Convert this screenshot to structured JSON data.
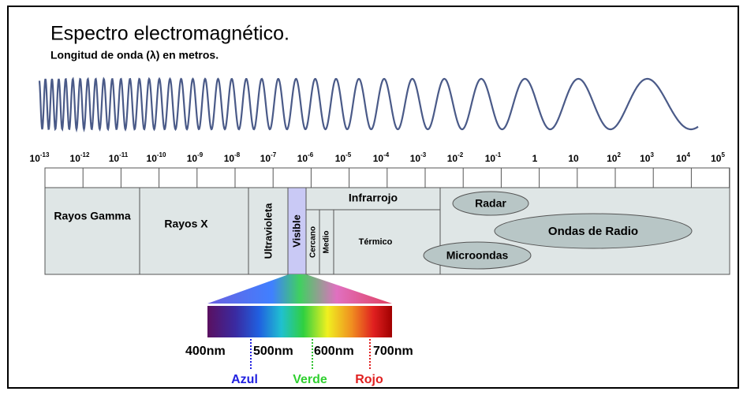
{
  "title": "Espectro electromagnético.",
  "subtitle": "Longitud de onda (λ) en metros.",
  "scale": {
    "ticks": [
      {
        "base": "10",
        "exp": "-13"
      },
      {
        "base": "10",
        "exp": "-12"
      },
      {
        "base": "10",
        "exp": "-11"
      },
      {
        "base": "10",
        "exp": "-10"
      },
      {
        "base": "10",
        "exp": "-9"
      },
      {
        "base": "10",
        "exp": "-8"
      },
      {
        "base": "10",
        "exp": "-7"
      },
      {
        "base": "10",
        "exp": "-6"
      },
      {
        "base": "10",
        "exp": "-5"
      },
      {
        "base": "10",
        "exp": "-4"
      },
      {
        "base": "10",
        "exp": "-3"
      },
      {
        "base": "10",
        "exp": "-2"
      },
      {
        "base": "10",
        "exp": "-1"
      },
      {
        "base": "1"
      },
      {
        "base": "10"
      },
      {
        "base": "10",
        "exp": "2"
      },
      {
        "base": "10",
        "exp": "3"
      },
      {
        "base": "10",
        "exp": "4"
      },
      {
        "base": "10",
        "exp": "5"
      }
    ]
  },
  "bands": {
    "gamma": "Rayos Gamma",
    "xray": "Rayos X",
    "uv": "Ultravioleta",
    "visible": "Visible",
    "infrared": "Infrarrojo",
    "near": "Cercano",
    "mid": "Medio",
    "thermal": "Térmico",
    "radar": "Radar",
    "radio": "Ondas de Radio",
    "microwave": "Microondas"
  },
  "visible": {
    "nm": [
      "400nm",
      "500nm",
      "600nm",
      "700nm"
    ],
    "blue": "Azul",
    "green": "Verde",
    "red": "Rojo"
  }
}
